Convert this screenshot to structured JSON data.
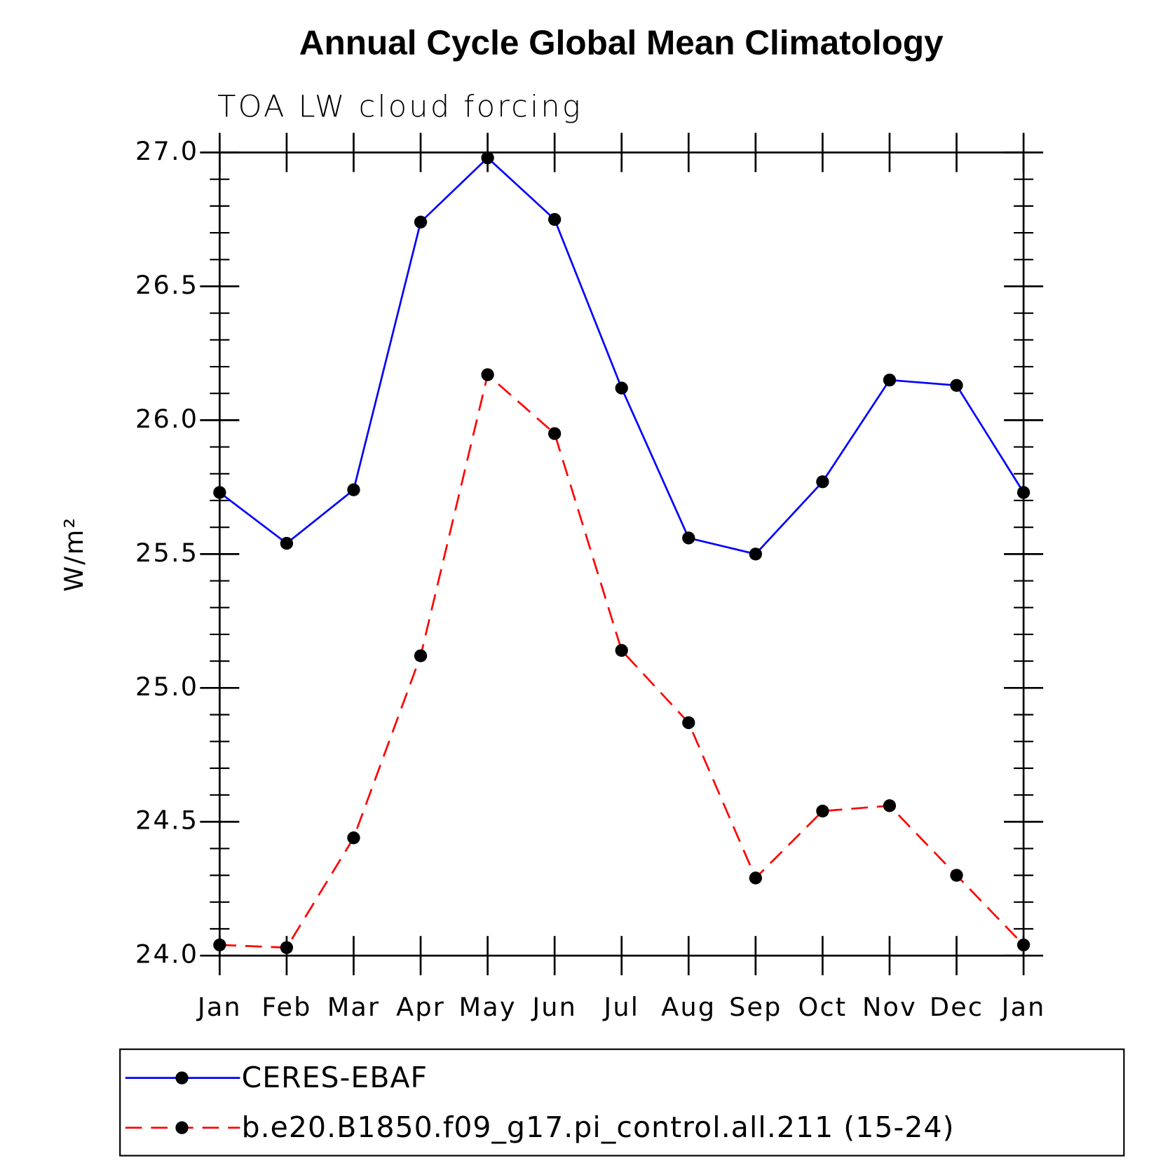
{
  "chart_data": {
    "type": "line",
    "title": "Annual Cycle Global Mean Climatology",
    "subtitle": "TOA LW cloud forcing",
    "ylabel": "W/m²",
    "categories": [
      "Jan",
      "Feb",
      "Mar",
      "Apr",
      "May",
      "Jun",
      "Jul",
      "Aug",
      "Sep",
      "Oct",
      "Nov",
      "Dec",
      "Jan"
    ],
    "series": [
      {
        "name": "CERES-EBAF",
        "color": "#0000ff",
        "linestyle": "solid",
        "values": [
          25.73,
          25.54,
          25.74,
          26.74,
          26.98,
          26.75,
          26.12,
          25.56,
          25.5,
          25.77,
          26.15,
          26.13,
          25.73
        ]
      },
      {
        "name": "b.e20.B1850.f09_g17.pi_control.all.211 (15-24)",
        "color": "#ff0000",
        "linestyle": "dashed",
        "values": [
          24.04,
          24.03,
          24.44,
          25.12,
          26.17,
          25.95,
          25.14,
          24.87,
          24.29,
          24.54,
          24.56,
          24.3,
          24.04
        ]
      }
    ],
    "ylim": [
      24,
      27
    ],
    "yticks": [
      {
        "value": 24,
        "label": "24.0"
      },
      {
        "value": 24.5,
        "label": "24.5"
      },
      {
        "value": 25,
        "label": "25.0"
      },
      {
        "value": 25.5,
        "label": "25.5"
      },
      {
        "value": 26,
        "label": "26.0"
      },
      {
        "value": 26.5,
        "label": "26.5"
      },
      {
        "value": 27,
        "label": "27.0"
      }
    ],
    "yminorticks": [
      24.1,
      24.2,
      24.3,
      24.4,
      24.6,
      24.7,
      24.8,
      24.9,
      25.1,
      25.2,
      25.3,
      25.4,
      25.6,
      25.7,
      25.8,
      25.9,
      26.1,
      26.2,
      26.3,
      26.4,
      26.6,
      26.7,
      26.8,
      26.9
    ],
    "marker_color": "#000000"
  }
}
